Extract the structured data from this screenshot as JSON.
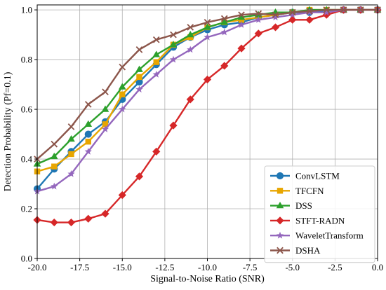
{
  "chart_data": {
    "type": "line",
    "xlabel": "Signal-to-Noise Ratio (SNR)",
    "ylabel": "Detection Probability (Pf=0.1)",
    "xlim": [
      -20,
      0
    ],
    "ylim": [
      0,
      1.02
    ],
    "xticks": [
      -20,
      -17.5,
      -15,
      -12.5,
      -10,
      -7.5,
      -5,
      -2.5,
      0
    ],
    "xtick_labels": [
      "-20.0",
      "-17.5",
      "-15.0",
      "-12.5",
      "-10.0",
      "-7.5",
      "-5.0",
      "-2.5",
      "0.0"
    ],
    "yticks": [
      0,
      0.2,
      0.4,
      0.6,
      0.8,
      1.0
    ],
    "ytick_labels": [
      "0.0",
      "0.2",
      "0.4",
      "0.6",
      "0.8",
      "1.0"
    ],
    "grid": true,
    "legend_position": "lower-right",
    "x": [
      -20,
      -19,
      -18,
      -17,
      -16,
      -15,
      -14,
      -13,
      -12,
      -11,
      -10,
      -9,
      -8,
      -7,
      -6,
      -5,
      -4,
      -3,
      -2,
      -1,
      0
    ],
    "series": [
      {
        "name": "ConvLSTM",
        "color": "#1f77b4",
        "marker": "circle",
        "values": [
          0.28,
          0.36,
          0.43,
          0.5,
          0.55,
          0.64,
          0.71,
          0.78,
          0.85,
          0.89,
          0.92,
          0.94,
          0.95,
          0.97,
          0.98,
          0.99,
          0.99,
          0.995,
          1.0,
          1.0,
          1.0
        ]
      },
      {
        "name": "TFCFN",
        "color": "#e8a600",
        "marker": "square",
        "values": [
          0.35,
          0.37,
          0.42,
          0.47,
          0.54,
          0.66,
          0.73,
          0.79,
          0.86,
          0.89,
          0.93,
          0.95,
          0.96,
          0.97,
          0.98,
          0.99,
          1.0,
          1.0,
          1.0,
          1.0,
          1.0
        ]
      },
      {
        "name": "DSS",
        "color": "#2ca02c",
        "marker": "triangle",
        "values": [
          0.38,
          0.41,
          0.48,
          0.54,
          0.6,
          0.69,
          0.76,
          0.82,
          0.86,
          0.9,
          0.93,
          0.95,
          0.97,
          0.98,
          0.99,
          0.99,
          1.0,
          1.0,
          1.0,
          1.0,
          1.0
        ]
      },
      {
        "name": "STFT-RADN",
        "color": "#d62728",
        "marker": "diamond",
        "values": [
          0.155,
          0.145,
          0.145,
          0.16,
          0.18,
          0.255,
          0.33,
          0.43,
          0.535,
          0.64,
          0.72,
          0.775,
          0.845,
          0.905,
          0.93,
          0.96,
          0.96,
          0.98,
          1.0,
          1.0,
          1.0
        ]
      },
      {
        "name": "WaveletTransform",
        "color": "#9467bd",
        "marker": "star",
        "values": [
          0.27,
          0.29,
          0.34,
          0.43,
          0.52,
          0.6,
          0.68,
          0.74,
          0.8,
          0.84,
          0.89,
          0.91,
          0.94,
          0.96,
          0.97,
          0.98,
          0.99,
          0.99,
          1.0,
          1.0,
          1.0
        ]
      },
      {
        "name": "DSHA",
        "color": "#8c564b",
        "marker": "x",
        "values": [
          0.4,
          0.46,
          0.53,
          0.62,
          0.67,
          0.77,
          0.84,
          0.88,
          0.9,
          0.93,
          0.95,
          0.965,
          0.98,
          0.985,
          0.98,
          0.99,
          0.995,
          1.0,
          1.0,
          1.0,
          1.0
        ]
      }
    ]
  }
}
